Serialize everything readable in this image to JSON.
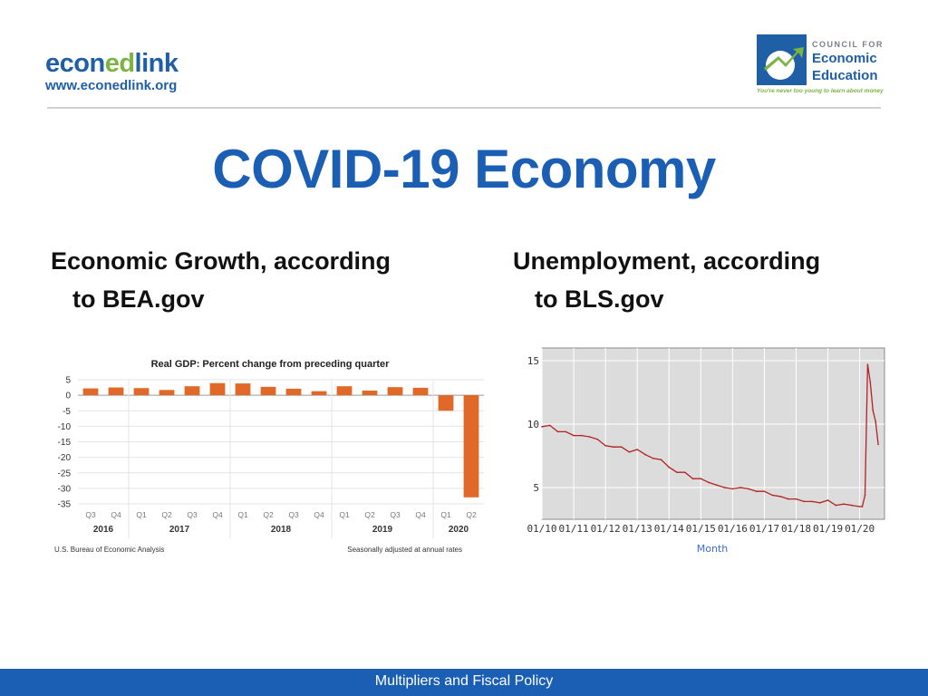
{
  "logos": {
    "left": {
      "brand_part1": "econ",
      "brand_part2": "ed",
      "brand_part3": "link",
      "url": "www.econedlink.org"
    },
    "right": {
      "line1": "COUNCIL FOR",
      "line2": "Economic",
      "line3": "Education",
      "tagline": "You're never too young to learn about money"
    }
  },
  "slide": {
    "title": "COVID-19 Economy",
    "left_heading": {
      "line1": "Economic Growth, according",
      "line2": "to BEA.gov"
    },
    "right_heading": {
      "line1": "Unemployment, according",
      "line2": "to BLS.gov"
    }
  },
  "footer": {
    "text": "Multipliers and Fiscal Policy"
  },
  "colors": {
    "title_blue": "#1a5fb4",
    "bar_orange": "#e0692a",
    "line_red": "#b22222",
    "footer_blue": "#1a5fb4"
  },
  "chart_data": [
    {
      "type": "bar",
      "title": "Real GDP:  Percent change from preceding quarter",
      "categories": [
        "Q3",
        "Q4",
        "Q1",
        "Q2",
        "Q3",
        "Q4",
        "Q1",
        "Q2",
        "Q3",
        "Q4",
        "Q1",
        "Q2",
        "Q3",
        "Q4",
        "Q1",
        "Q2"
      ],
      "year_labels": [
        "2016",
        "2017",
        "2018",
        "2019",
        "2020"
      ],
      "values": [
        2.2,
        2.5,
        2.3,
        1.7,
        2.9,
        3.9,
        3.8,
        2.7,
        2.1,
        1.3,
        2.9,
        1.5,
        2.6,
        2.4,
        -5.0,
        -32.9
      ],
      "ylim": [
        -35,
        5
      ],
      "yticks": [
        "5",
        "0",
        "-5",
        "-10",
        "-15",
        "-20",
        "-25",
        "-30",
        "-35"
      ],
      "source": "U.S. Bureau of Economic Analysis",
      "note": "Seasonally adjusted at annual rates",
      "grid": true
    },
    {
      "type": "line",
      "xlabel": "Month",
      "xtick_labels": [
        "01/10",
        "01/11",
        "01/12",
        "01/13",
        "01/14",
        "01/15",
        "01/16",
        "01/17",
        "01/18",
        "01/19",
        "01/20"
      ],
      "yticks": [
        "15",
        "10",
        "5"
      ],
      "ylim": [
        2.5,
        16
      ],
      "x": [
        "2010-01",
        "2010-04",
        "2010-07",
        "2010-10",
        "2011-01",
        "2011-04",
        "2011-07",
        "2011-10",
        "2012-01",
        "2012-04",
        "2012-07",
        "2012-10",
        "2013-01",
        "2013-04",
        "2013-07",
        "2013-10",
        "2014-01",
        "2014-04",
        "2014-07",
        "2014-10",
        "2015-01",
        "2015-04",
        "2015-07",
        "2015-10",
        "2016-01",
        "2016-04",
        "2016-07",
        "2016-10",
        "2017-01",
        "2017-04",
        "2017-07",
        "2017-10",
        "2018-01",
        "2018-04",
        "2018-07",
        "2018-10",
        "2019-01",
        "2019-04",
        "2019-07",
        "2019-10",
        "2020-01",
        "2020-02",
        "2020-03",
        "2020-04",
        "2020-05",
        "2020-06",
        "2020-07",
        "2020-08"
      ],
      "values": [
        9.8,
        9.9,
        9.4,
        9.4,
        9.1,
        9.1,
        9.0,
        8.8,
        8.3,
        8.2,
        8.2,
        7.8,
        8.0,
        7.6,
        7.3,
        7.2,
        6.6,
        6.2,
        6.2,
        5.7,
        5.7,
        5.4,
        5.2,
        5.0,
        4.9,
        5.0,
        4.9,
        4.7,
        4.7,
        4.4,
        4.3,
        4.1,
        4.1,
        3.9,
        3.9,
        3.8,
        4.0,
        3.6,
        3.7,
        3.6,
        3.5,
        3.5,
        4.4,
        14.7,
        13.3,
        11.1,
        10.2,
        8.4
      ],
      "grid": true
    }
  ]
}
